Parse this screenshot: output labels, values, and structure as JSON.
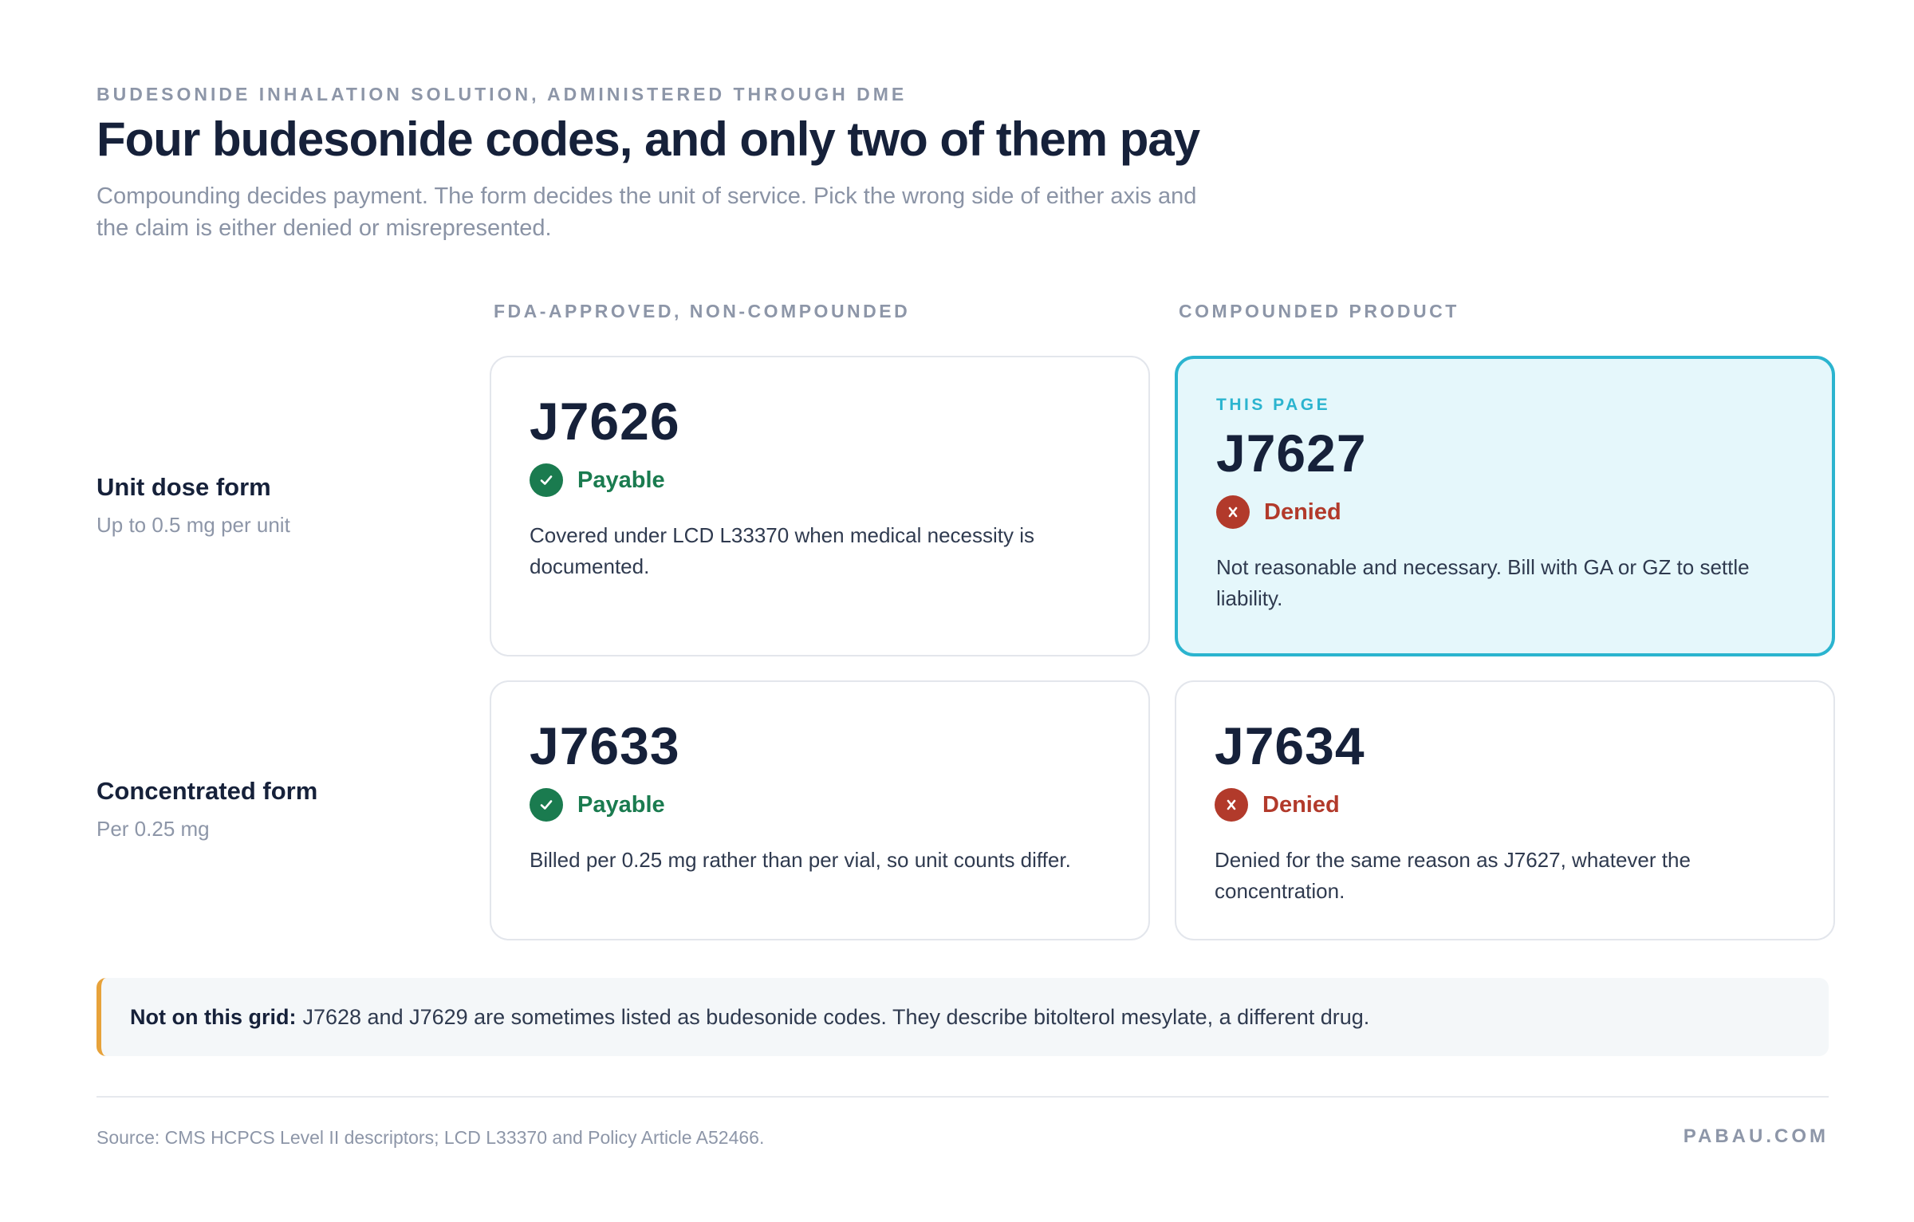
{
  "header": {
    "eyebrow": "BUDESONIDE INHALATION SOLUTION, ADMINISTERED THROUGH DME",
    "title": "Four budesonide codes, and only two of them pay",
    "subtitle": "Compounding decides payment. The form decides the unit of service. Pick the wrong side of either axis and the claim is either denied or misrepresented."
  },
  "columns": [
    {
      "label": "FDA-APPROVED, NON-COMPOUNDED"
    },
    {
      "label": "COMPOUNDED PRODUCT"
    }
  ],
  "rows": [
    {
      "title": "Unit dose form",
      "subtitle": "Up to 0.5 mg per unit"
    },
    {
      "title": "Concentrated form",
      "subtitle": "Per 0.25 mg"
    }
  ],
  "cards": {
    "j7626": {
      "code": "J7626",
      "status": "Payable",
      "status_icon": "check-icon",
      "description": "Covered under LCD L33370 when medical necessity is documented."
    },
    "j7627": {
      "tag": "THIS PAGE",
      "code": "J7627",
      "status": "Denied",
      "status_icon": "x-icon",
      "description": "Not reasonable and necessary. Bill with GA or GZ to settle liability."
    },
    "j7633": {
      "code": "J7633",
      "status": "Payable",
      "status_icon": "check-icon",
      "description": "Billed per 0.25 mg rather than per vial, so unit counts differ."
    },
    "j7634": {
      "code": "J7634",
      "status": "Denied",
      "status_icon": "x-icon",
      "description": "Denied for the same reason as J7627, whatever the concentration."
    }
  },
  "note": {
    "label": "Not on this grid:",
    "text": "J7628 and J7629 are sometimes listed as budesonide codes. They describe bitolterol mesylate, a different drug."
  },
  "footer": {
    "source": "Source: CMS HCPCS Level II descriptors; LCD L33370 and Policy Article A52466.",
    "brand": "PABAU.COM"
  },
  "colors": {
    "payable": "#1a7b4f",
    "denied": "#b23a2b",
    "highlight_border": "#2bb4cf",
    "highlight_bg": "#e5f7fb",
    "note_accent": "#e7a23a"
  }
}
